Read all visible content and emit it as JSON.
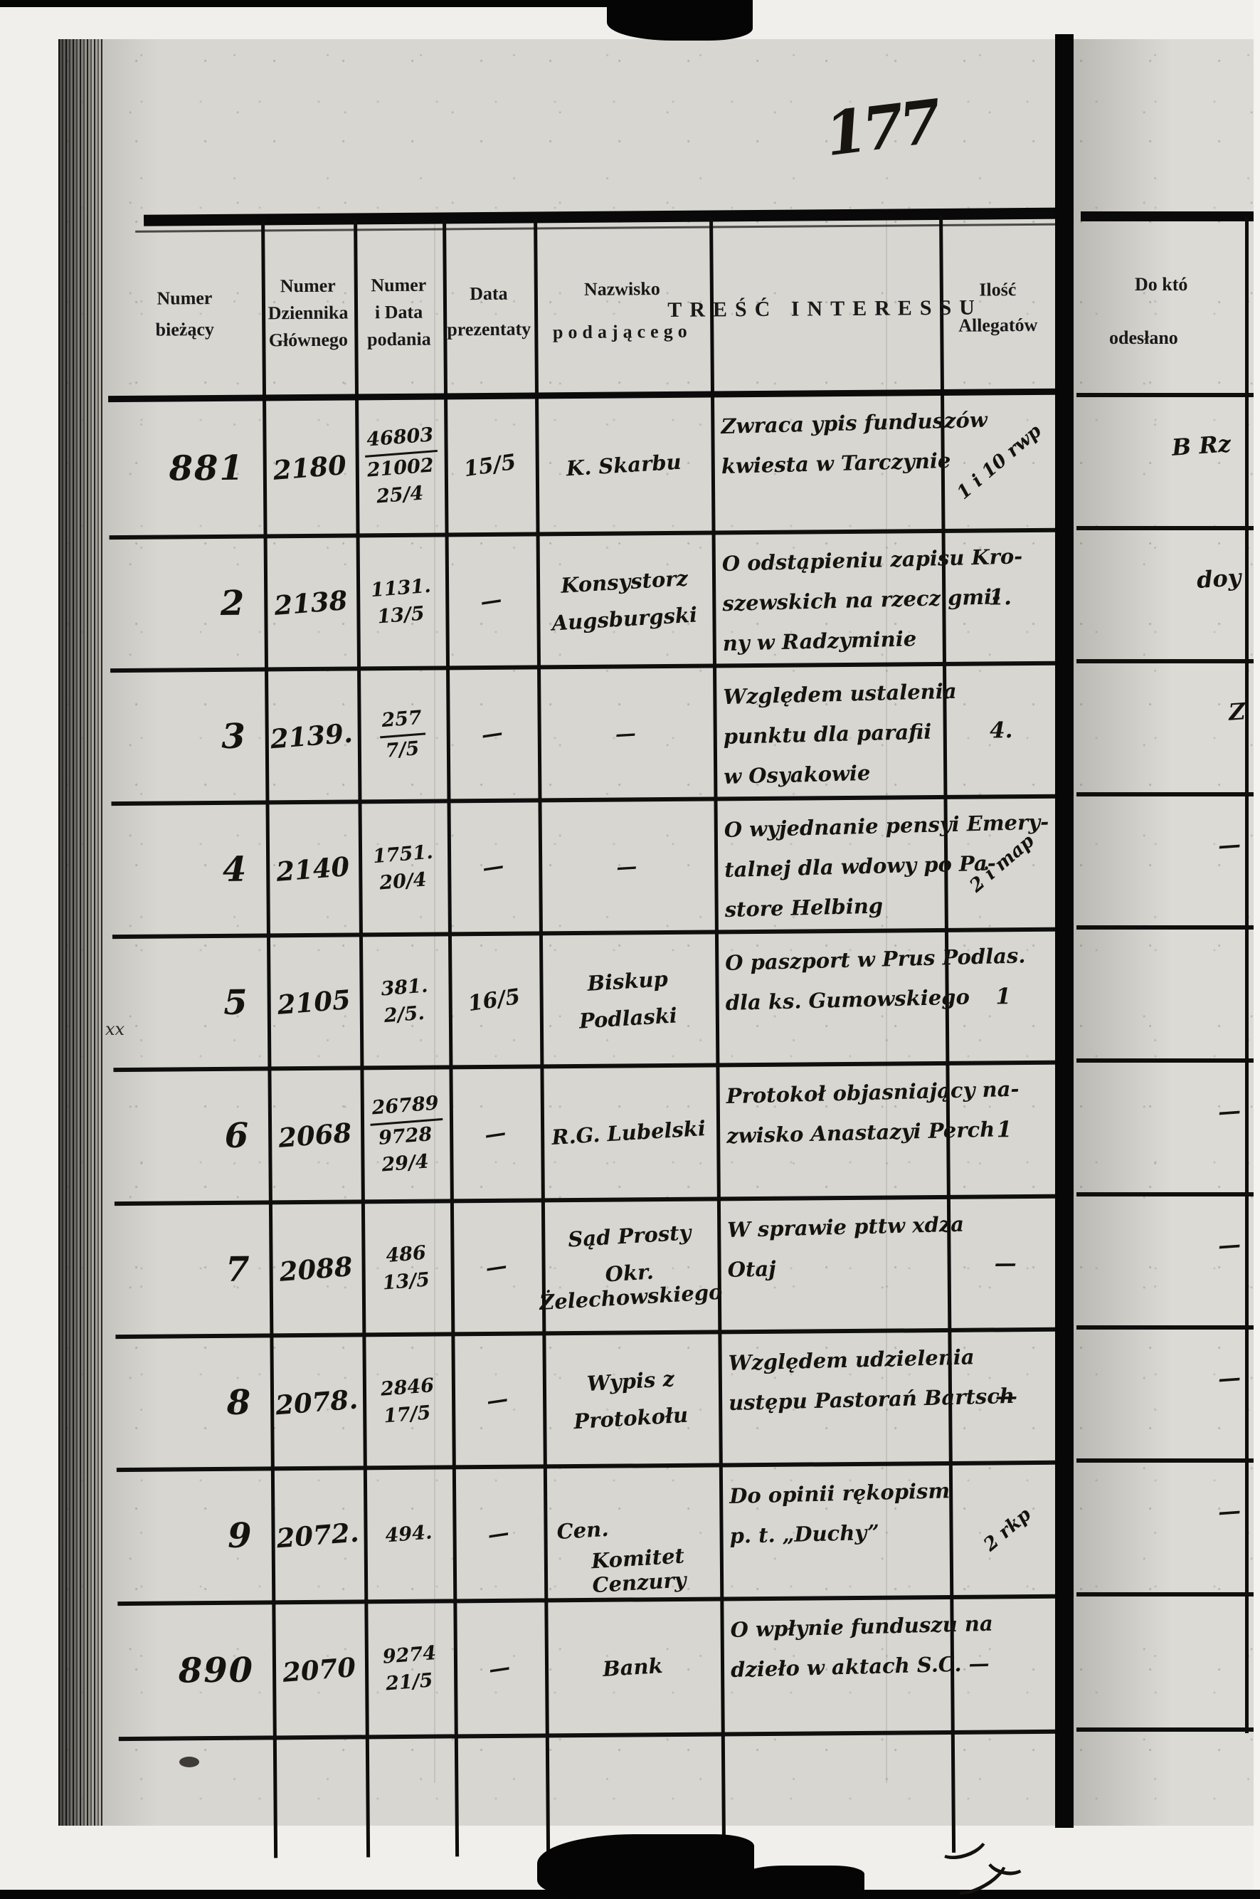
{
  "page_number": "177",
  "margin_mark": "xx",
  "header": {
    "c1": [
      "Numer",
      "bieżący"
    ],
    "c2": [
      "Numer",
      "Dziennika",
      "Głównego"
    ],
    "c3": [
      "Numer",
      "i Data",
      "podania"
    ],
    "c4": [
      "Data",
      "prezentaty"
    ],
    "c5": [
      "Nazwisko",
      "podającego"
    ],
    "c6": [
      "TREŚĆ INTERESSU"
    ],
    "c7": [
      "Ilość",
      "Allegatów"
    ]
  },
  "rows": [
    {
      "numer_biezacy": "881",
      "numer_dziennika": "2180",
      "numer_i_data_podania": [
        "46803",
        "21002",
        "25/4"
      ],
      "podanie_fraction": true,
      "data_prezentaty": "15/5",
      "nazwisko_podajacego": [
        "K. Skarbu"
      ],
      "tresc_interessu": [
        "Zwraca ypis funduszów",
        "kwiesta w Tarczynie"
      ],
      "ilosc_allegatow": "1 i 10 rwp"
    },
    {
      "numer_biezacy": "2",
      "numer_dziennika": "2138",
      "numer_i_data_podania": [
        "1131.",
        "13/5"
      ],
      "data_prezentaty": "—",
      "nazwisko_podajacego": [
        "Konsystorz",
        "Augsburgski"
      ],
      "tresc_interessu": [
        "O odstąpieniu zapisu Kro-",
        "szewskich na rzecz gmi-",
        "ny w Radzyminie"
      ],
      "ilosc_allegatow": "1."
    },
    {
      "numer_biezacy": "3",
      "numer_dziennika": "2139.",
      "numer_i_data_podania": [
        "257",
        "7/5"
      ],
      "podanie_fraction": true,
      "data_prezentaty": "—",
      "nazwisko_podajacego": [
        "—"
      ],
      "tresc_interessu": [
        "Względem ustalenia",
        "punktu dla parafii",
        "w Osyakowie"
      ],
      "ilosc_allegatow": "4."
    },
    {
      "numer_biezacy": "4",
      "numer_dziennika": "2140",
      "numer_i_data_podania": [
        "1751.",
        "20/4"
      ],
      "data_prezentaty": "—",
      "nazwisko_podajacego": [
        "—"
      ],
      "tresc_interessu": [
        "O wyjednanie pensyi Emery-",
        "talnej dla wdowy po Pa-",
        "store Helbing"
      ],
      "ilosc_allegatow": "2 i map"
    },
    {
      "numer_biezacy": "5",
      "numer_dziennika": "2105",
      "numer_i_data_podania": [
        "381.",
        "2/5."
      ],
      "data_prezentaty": "16/5",
      "nazwisko_podajacego": [
        "Biskup",
        "Podlaski"
      ],
      "tresc_interessu": [
        "O paszport w Prus Podlas.",
        "dla ks. Gumowskiego"
      ],
      "ilosc_allegatow": "1"
    },
    {
      "numer_biezacy": "6",
      "numer_dziennika": "2068",
      "numer_i_data_podania": [
        "26789",
        "9728",
        "29/4"
      ],
      "podanie_fraction": true,
      "data_prezentaty": "—",
      "nazwisko_podajacego": [
        "R.G. Lubelski"
      ],
      "tresc_interessu": [
        "Protokoł objasniający na-",
        "zwisko Anastazyi Perch"
      ],
      "ilosc_allegatow": "1"
    },
    {
      "numer_biezacy": "7",
      "numer_dziennika": "2088",
      "numer_i_data_podania": [
        "486",
        "13/5"
      ],
      "data_prezentaty": "—",
      "nazwisko_podajacego": [
        "Sąd Prosty",
        "Okr. Żelechowskiego"
      ],
      "tresc_interessu": [
        "W sprawie pttw xdza",
        "Otaj"
      ],
      "ilosc_allegatow": "—"
    },
    {
      "numer_biezacy": "8",
      "numer_dziennika": "2078.",
      "numer_i_data_podania": [
        "2846",
        "17/5"
      ],
      "data_prezentaty": "—",
      "nazwisko_podajacego": [
        "Wypis z",
        "Protokołu"
      ],
      "tresc_interessu": [
        "Względem udzielenia",
        "ustępu Pastorań Bartsch"
      ],
      "ilosc_allegatow": "—"
    },
    {
      "numer_biezacy": "9",
      "numer_dziennika": "2072.",
      "numer_i_data_podania": [
        "494."
      ],
      "data_prezentaty": "—",
      "nazwisko_podajacego": [
        "Cen.",
        "Komitet Cenzury"
      ],
      "tresc_interessu": [
        "Do opinii rękopism",
        "p. t. „Duchy”"
      ],
      "ilosc_allegatow": "2 rkp"
    },
    {
      "numer_biezacy": "890",
      "numer_dziennika": "2070",
      "numer_i_data_podania": [
        "9274",
        "21/5"
      ],
      "data_prezentaty": "—",
      "nazwisko_podajacego": [
        "Bank"
      ],
      "tresc_interessu": [
        "O wpłynie funduszu na",
        "dzieło w aktach S.C. —"
      ],
      "ilosc_allegatow": ""
    }
  ],
  "right_page": {
    "header": [
      "Do któ",
      "odesłano"
    ],
    "fragments": [
      "B Rz",
      "doy",
      "Z",
      "—",
      "",
      "—",
      "—",
      "—",
      "—",
      ""
    ]
  }
}
